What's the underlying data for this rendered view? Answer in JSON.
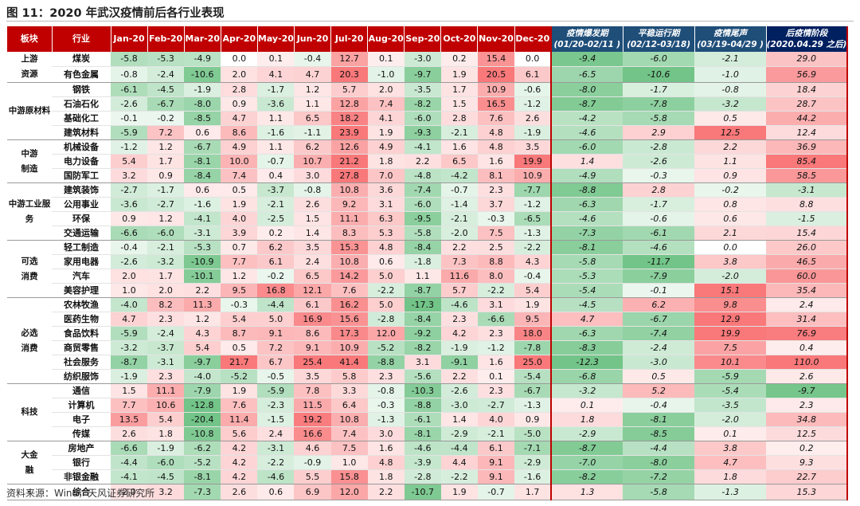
{
  "title": "图 11：2020 年武汉疫情前后各行业表现",
  "source": "资料来源：Wind，天风证券研究所",
  "colors": {
    "header_red": "#c00000",
    "header_navy": "#1f4e79",
    "positive": "#f8696b",
    "negative": "#63be7b"
  },
  "header": {
    "sector": "板块",
    "industry": "行业",
    "months": [
      "Jan-20",
      "Feb-20",
      "Mar-20",
      "Apr-20",
      "May-20",
      "Jun-20",
      "Jul-20",
      "Aug-20",
      "Sep-20",
      "Oct-20",
      "Nov-20",
      "Dec-20"
    ],
    "periods": [
      {
        "name": "疫情爆发期",
        "range": "(01/20-02/11 )"
      },
      {
        "name": "平稳运行期",
        "range": "(02/12-03/18)"
      },
      {
        "name": "疫情尾声",
        "range": "(03/19-04/29 )"
      },
      {
        "name": "后疫情阶段",
        "range": "(2020.04.29 之后)"
      }
    ]
  },
  "groups": [
    {
      "sector": "上游资源",
      "rows": [
        {
          "industry": "煤炭",
          "months": [
            "-5.8",
            "-5.3",
            "-4.9",
            "0.0",
            "0.1",
            "-0.4",
            "12.7",
            "0.1",
            "-3.0",
            "0.2",
            "15.4",
            "0.0"
          ],
          "periods": [
            "-9.4",
            "-6.0",
            "-2.1",
            "29.0"
          ]
        },
        {
          "industry": "有色金属",
          "months": [
            "-0.8",
            "-2.4",
            "-10.6",
            "2.0",
            "4.1",
            "4.7",
            "20.3",
            "-1.0",
            "-9.7",
            "1.9",
            "20.5",
            "6.1"
          ],
          "periods": [
            "-6.5",
            "-10.6",
            "-1.0",
            "56.9"
          ]
        }
      ]
    },
    {
      "sector": "中游原材料",
      "rows": [
        {
          "industry": "钢铁",
          "months": [
            "-6.1",
            "-4.5",
            "-1.9",
            "2.8",
            "-1.7",
            "1.2",
            "5.7",
            "2.0",
            "-3.5",
            "1.7",
            "10.9",
            "-0.6"
          ],
          "periods": [
            "-8.0",
            "-1.7",
            "-0.8",
            "18.4"
          ]
        },
        {
          "industry": "石油石化",
          "months": [
            "-2.6",
            "-6.7",
            "-8.0",
            "0.9",
            "-3.6",
            "1.1",
            "12.8",
            "7.4",
            "-8.2",
            "1.5",
            "16.5",
            "-1.2"
          ],
          "periods": [
            "-8.7",
            "-7.8",
            "-3.2",
            "28.7"
          ]
        },
        {
          "industry": "基础化工",
          "months": [
            "-0.1",
            "-0.2",
            "-8.5",
            "4.7",
            "1.1",
            "6.5",
            "18.2",
            "4.1",
            "-6.0",
            "2.8",
            "7.6",
            "2.6"
          ],
          "periods": [
            "-4.2",
            "-5.8",
            "0.5",
            "44.2"
          ]
        },
        {
          "industry": "建筑材料",
          "months": [
            "-5.9",
            "7.2",
            "0.6",
            "8.6",
            "-1.6",
            "-1.1",
            "23.9",
            "1.9",
            "-9.3",
            "-2.1",
            "4.8",
            "-1.9"
          ],
          "periods": [
            "-4.6",
            "2.9",
            "12.5",
            "12.4"
          ]
        }
      ]
    },
    {
      "sector": "中游制造",
      "rows": [
        {
          "industry": "机械设备",
          "months": [
            "-1.2",
            "1.2",
            "-6.7",
            "4.9",
            "1.1",
            "6.2",
            "12.6",
            "4.9",
            "-4.1",
            "1.6",
            "4.8",
            "3.5"
          ],
          "periods": [
            "-6.0",
            "-2.8",
            "2.2",
            "36.9"
          ]
        },
        {
          "industry": "电力设备",
          "months": [
            "5.4",
            "1.7",
            "-8.1",
            "10.0",
            "-0.7",
            "10.7",
            "21.2",
            "1.8",
            "2.2",
            "6.5",
            "1.6",
            "19.9"
          ],
          "periods": [
            "1.4",
            "-2.6",
            "1.1",
            "85.4"
          ]
        },
        {
          "industry": "国防军工",
          "months": [
            "3.2",
            "0.9",
            "-8.4",
            "7.4",
            "0.4",
            "3.0",
            "27.8",
            "7.0",
            "-4.8",
            "-4.2",
            "8.1",
            "10.9"
          ],
          "periods": [
            "-4.9",
            "-0.3",
            "0.9",
            "58.5"
          ]
        }
      ]
    },
    {
      "sector": "中游工业服务",
      "rows": [
        {
          "industry": "建筑装饰",
          "months": [
            "-2.7",
            "-1.7",
            "0.6",
            "0.5",
            "-3.7",
            "-0.8",
            "10.8",
            "3.6",
            "-7.4",
            "-0.7",
            "2.3",
            "-7.7"
          ],
          "periods": [
            "-8.8",
            "2.8",
            "-0.2",
            "-3.1"
          ]
        },
        {
          "industry": "公用事业",
          "months": [
            "-3.6",
            "-2.7",
            "-1.6",
            "1.9",
            "-2.1",
            "2.6",
            "9.2",
            "3.1",
            "-6.0",
            "-1.4",
            "3.7",
            "-1.2"
          ],
          "periods": [
            "-6.3",
            "-1.7",
            "0.8",
            "8.8"
          ]
        },
        {
          "industry": "环保",
          "months": [
            "0.9",
            "1.2",
            "-4.1",
            "4.0",
            "-2.5",
            "1.5",
            "11.1",
            "6.3",
            "-9.5",
            "-2.1",
            "-0.3",
            "-6.5"
          ],
          "periods": [
            "-4.6",
            "-0.6",
            "0.6",
            "-1.5"
          ]
        },
        {
          "industry": "交通运输",
          "months": [
            "-6.6",
            "-6.0",
            "-3.1",
            "3.9",
            "0.2",
            "1.4",
            "8.3",
            "5.3",
            "-5.8",
            "-2.0",
            "7.5",
            "-1.3"
          ],
          "periods": [
            "-7.3",
            "-6.1",
            "2.1",
            "15.4"
          ]
        }
      ]
    },
    {
      "sector": "可选消费",
      "rows": [
        {
          "industry": "轻工制造",
          "months": [
            "-0.4",
            "-2.1",
            "-5.3",
            "0.7",
            "6.2",
            "3.5",
            "15.3",
            "4.8",
            "-8.4",
            "2.2",
            "2.5",
            "-2.2"
          ],
          "periods": [
            "-8.1",
            "-4.6",
            "0.0",
            "26.0"
          ]
        },
        {
          "industry": "家用电器",
          "months": [
            "-2.6",
            "-3.2",
            "-10.9",
            "7.7",
            "6.1",
            "2.4",
            "10.8",
            "0.6",
            "-1.8",
            "7.3",
            "8.8",
            "4.3"
          ],
          "periods": [
            "-5.8",
            "-11.7",
            "3.8",
            "46.5"
          ]
        },
        {
          "industry": "汽车",
          "months": [
            "2.0",
            "1.7",
            "-10.1",
            "1.2",
            "-0.2",
            "6.5",
            "14.2",
            "5.0",
            "1.1",
            "11.6",
            "8.0",
            "-0.4"
          ],
          "periods": [
            "-5.3",
            "-7.9",
            "-2.0",
            "60.0"
          ]
        },
        {
          "industry": "美容护理",
          "months": [
            "1.0",
            "2.0",
            "2.2",
            "9.5",
            "16.8",
            "12.1",
            "7.6",
            "-2.2",
            "-8.7",
            "5.7",
            "-2.2",
            "5.4"
          ],
          "periods": [
            "-5.4",
            "-0.1",
            "15.1",
            "35.4"
          ]
        }
      ]
    },
    {
      "sector": "必选消费",
      "rows": [
        {
          "industry": "农林牧渔",
          "months": [
            "-4.0",
            "8.2",
            "11.3",
            "-0.3",
            "-4.4",
            "6.1",
            "16.2",
            "5.0",
            "-17.3",
            "-4.6",
            "3.1",
            "1.9"
          ],
          "periods": [
            "-4.5",
            "6.2",
            "9.8",
            "2.4"
          ]
        },
        {
          "industry": "医药生物",
          "months": [
            "4.7",
            "2.3",
            "1.2",
            "5.4",
            "5.0",
            "16.9",
            "15.6",
            "-2.8",
            "-8.4",
            "2.3",
            "-6.6",
            "9.5"
          ],
          "periods": [
            "4.7",
            "-6.7",
            "12.9",
            "31.4"
          ]
        },
        {
          "industry": "食品饮料",
          "months": [
            "-5.9",
            "-2.4",
            "4.3",
            "8.7",
            "9.1",
            "8.6",
            "17.3",
            "12.0",
            "-9.2",
            "4.2",
            "2.3",
            "18.0"
          ],
          "periods": [
            "-6.3",
            "-7.4",
            "19.9",
            "76.9"
          ]
        },
        {
          "industry": "商贸零售",
          "months": [
            "-3.2",
            "-3.7",
            "5.4",
            "0.5",
            "7.2",
            "9.1",
            "10.9",
            "-5.2",
            "-8.2",
            "-1.9",
            "-1.2",
            "-7.8"
          ],
          "periods": [
            "-8.3",
            "-2.4",
            "7.5",
            "0.4"
          ]
        },
        {
          "industry": "社会服务",
          "months": [
            "-8.7",
            "-3.1",
            "-9.7",
            "21.7",
            "6.7",
            "25.4",
            "41.4",
            "-8.8",
            "3.1",
            "-9.1",
            "1.6",
            "25.0"
          ],
          "periods": [
            "-12.3",
            "-3.0",
            "10.1",
            "110.0"
          ]
        },
        {
          "industry": "纺织服饰",
          "months": [
            "-1.9",
            "2.3",
            "-4.0",
            "-5.2",
            "-0.5",
            "3.5",
            "5.8",
            "2.3",
            "-5.6",
            "2.2",
            "0.1",
            "-5.4"
          ],
          "periods": [
            "-6.8",
            "0.5",
            "-5.9",
            "2.6"
          ]
        }
      ]
    },
    {
      "sector": "科技",
      "rows": [
        {
          "industry": "通信",
          "months": [
            "1.5",
            "11.1",
            "-7.9",
            "1.9",
            "-5.9",
            "7.8",
            "3.3",
            "-0.8",
            "-10.3",
            "-2.6",
            "2.3",
            "-6.7"
          ],
          "periods": [
            "-3.2",
            "5.2",
            "-5.4",
            "-9.7"
          ]
        },
        {
          "industry": "计算机",
          "months": [
            "7.7",
            "10.6",
            "-12.8",
            "7.6",
            "-2.3",
            "11.5",
            "6.4",
            "-0.3",
            "-8.8",
            "-3.0",
            "-2.7",
            "-1.3"
          ],
          "periods": [
            "0.1",
            "-0.4",
            "-3.5",
            "2.3"
          ]
        },
        {
          "industry": "电子",
          "months": [
            "13.5",
            "5.4",
            "-20.4",
            "11.4",
            "-1.5",
            "19.2",
            "10.8",
            "-1.3",
            "-6.1",
            "1.4",
            "4.0",
            "0.9"
          ],
          "periods": [
            "1.8",
            "-8.1",
            "-2.0",
            "34.8"
          ]
        },
        {
          "industry": "传媒",
          "months": [
            "2.6",
            "1.8",
            "-10.8",
            "5.6",
            "2.4",
            "16.6",
            "7.4",
            "3.0",
            "-8.1",
            "-2.9",
            "-2.1",
            "-5.0"
          ],
          "periods": [
            "-2.9",
            "-8.5",
            "0.1",
            "12.5"
          ]
        }
      ]
    },
    {
      "sector": "大金融",
      "rows": [
        {
          "industry": "房地产",
          "months": [
            "-6.6",
            "-1.9",
            "-6.2",
            "4.2",
            "-3.1",
            "4.6",
            "7.5",
            "1.6",
            "-4.6",
            "-4.4",
            "6.1",
            "-7.1"
          ],
          "periods": [
            "-8.7",
            "-4.4",
            "3.8",
            "0.2"
          ]
        },
        {
          "industry": "银行",
          "months": [
            "-4.4",
            "-6.0",
            "-5.2",
            "4.2",
            "-2.2",
            "-0.9",
            "1.0",
            "4.8",
            "-3.9",
            "4.4",
            "9.1",
            "-2.9"
          ],
          "periods": [
            "-7.0",
            "-8.0",
            "4.7",
            "9.3"
          ]
        },
        {
          "industry": "非银金融",
          "months": [
            "-4.1",
            "-4.5",
            "-8.1",
            "4.2",
            "-4.6",
            "5.5",
            "15.8",
            "1.8",
            "-2.8",
            "-2.2",
            "9.1",
            "-1.6"
          ],
          "periods": [
            "-8.2",
            "-7.2",
            "1.8",
            "22.7"
          ]
        }
      ]
    },
    {
      "sector": "-",
      "rows": [
        {
          "industry": "综合",
          "months": [
            "2.0",
            "3.2",
            "-7.3",
            "2.6",
            "0.6",
            "6.9",
            "12.0",
            "2.2",
            "-10.7",
            "1.9",
            "-0.7",
            "1.7"
          ],
          "periods": [
            "1.3",
            "-5.8",
            "-1.3",
            "15.3"
          ]
        }
      ]
    }
  ]
}
